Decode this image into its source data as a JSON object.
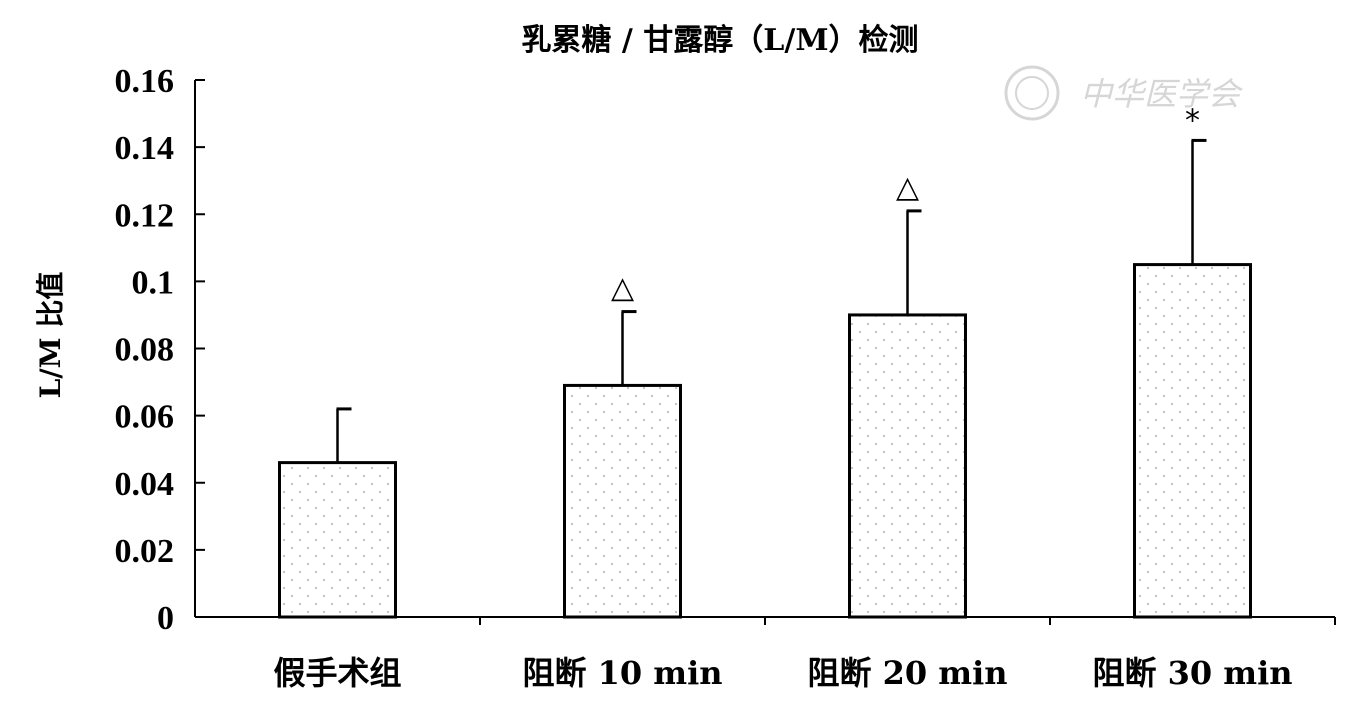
{
  "chart_data": {
    "type": "bar",
    "title": "乳累糖 / 甘露醇（L/M）检测",
    "ylabel": "L/M 比值",
    "xlabel": "",
    "categories": [
      "假手术组",
      "阻断 10 min",
      "阻断 20 min",
      "阻断 30 min"
    ],
    "values": [
      0.046,
      0.069,
      0.09,
      0.105
    ],
    "error_upper": [
      0.062,
      0.091,
      0.121,
      0.142
    ],
    "annotations": [
      "",
      "△",
      "△",
      "*"
    ],
    "ylim": [
      0,
      0.16
    ],
    "yticks": [
      "0",
      "0.02",
      "0.04",
      "0.06",
      "0.08",
      "0.1",
      "0.12",
      "0.14",
      "0.16"
    ],
    "ytick_values": [
      0,
      0.02,
      0.04,
      0.06,
      0.08,
      0.1,
      0.12,
      0.14,
      0.16
    ],
    "grid": false,
    "bar_fill": "dotted-white",
    "bar_color": "#000000"
  },
  "watermark": {
    "text": "中华医学会"
  }
}
